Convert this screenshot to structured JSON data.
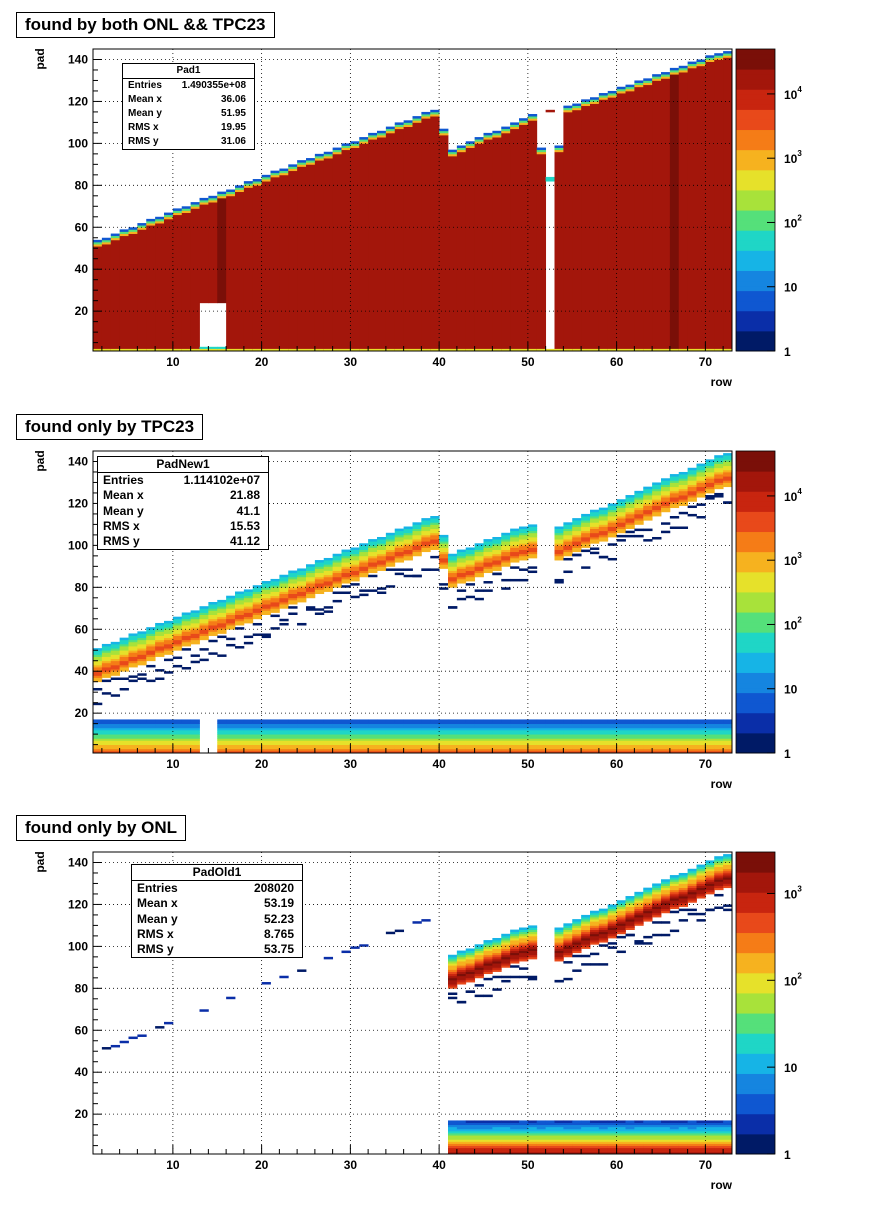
{
  "colors": {
    "frame": "#000000",
    "grid": "#000000",
    "palette": [
      "#001a66",
      "#0a2ea8",
      "#0f57d1",
      "#1585e0",
      "#16b4e6",
      "#1fd6c6",
      "#55e07a",
      "#a8e23a",
      "#e6e12a",
      "#f6b21f",
      "#f57c17",
      "#e8491a",
      "#c8250f",
      "#a3160b",
      "#7a0f08"
    ]
  },
  "panels": [
    {
      "title": "found by both ONL && TPC23",
      "stats": {
        "name": "Pad1",
        "rows": [
          {
            "label": "Entries",
            "value": "1.490355e+08"
          },
          {
            "label": "Mean x",
            "value": "36.06"
          },
          {
            "label": "Mean y",
            "value": "51.95"
          },
          {
            "label": "RMS x",
            "value": "19.95"
          },
          {
            "label": "RMS y",
            "value": "31.06"
          }
        ]
      }
    },
    {
      "title": "found only by TPC23",
      "stats": {
        "name": "PadNew1",
        "rows": [
          {
            "label": "Entries",
            "value": "1.114102e+07"
          },
          {
            "label": "Mean x",
            "value": "21.88"
          },
          {
            "label": "Mean y",
            "value": "41.1"
          },
          {
            "label": "RMS x",
            "value": "15.53"
          },
          {
            "label": "RMS y",
            "value": "41.12"
          }
        ]
      }
    },
    {
      "title": "found only by ONL",
      "stats": {
        "name": "PadOld1",
        "rows": [
          {
            "label": "Entries",
            "value": "208020"
          },
          {
            "label": "Mean x",
            "value": "53.19"
          },
          {
            "label": "Mean y",
            "value": "52.23"
          },
          {
            "label": "RMS x",
            "value": "8.765"
          },
          {
            "label": "RMS y",
            "value": "53.75"
          }
        ]
      }
    }
  ],
  "chart_data": [
    {
      "type": "heatmap",
      "xlabel": "row",
      "ylabel": "pad",
      "xlim": [
        1,
        73
      ],
      "ylim": [
        1,
        145
      ],
      "x_ticks": [
        10,
        20,
        30,
        40,
        50,
        60,
        70
      ],
      "y_ticks": [
        20,
        40,
        60,
        80,
        100,
        120,
        140
      ],
      "z_scale": "log",
      "z_range": [
        1,
        50000
      ],
      "z_tick_labels": [
        {
          "value": 1,
          "base": "1",
          "exp": ""
        },
        {
          "value": 10,
          "base": "10",
          "exp": ""
        },
        {
          "value": 100,
          "base": "10",
          "exp": "2"
        },
        {
          "value": 1000,
          "base": "10",
          "exp": "3"
        },
        {
          "value": 10000,
          "base": "10",
          "exp": "4"
        }
      ],
      "upper_edge": [
        {
          "row": 1,
          "pad": 53
        },
        {
          "row": 40,
          "pad": 117
        },
        {
          "row": 41,
          "pad": 96
        },
        {
          "row": 51,
          "pad": 115
        },
        {
          "row": 52,
          "pad": 80
        },
        {
          "row": 53,
          "pad": 80
        },
        {
          "row": 54,
          "pad": 117
        },
        {
          "row": 72,
          "pad": 144
        }
      ],
      "empty_regions": [
        {
          "x": [
            13,
            16
          ],
          "y": [
            1,
            24
          ]
        },
        {
          "x": [
            52,
            53
          ],
          "y": [
            82,
            115
          ]
        }
      ],
      "bulk_level": 20000
    },
    {
      "type": "heatmap",
      "xlabel": "row",
      "ylabel": "pad",
      "xlim": [
        1,
        73
      ],
      "ylim": [
        1,
        145
      ],
      "x_ticks": [
        10,
        20,
        30,
        40,
        50,
        60,
        70
      ],
      "y_ticks": [
        20,
        40,
        60,
        80,
        100,
        120,
        140
      ],
      "z_scale": "log",
      "z_range": [
        1,
        50000
      ],
      "z_tick_labels": [
        {
          "value": 1,
          "base": "1",
          "exp": ""
        },
        {
          "value": 10,
          "base": "10",
          "exp": ""
        },
        {
          "value": 100,
          "base": "10",
          "exp": "2"
        },
        {
          "value": 1000,
          "base": "10",
          "exp": "3"
        },
        {
          "value": 10000,
          "base": "10",
          "exp": "4"
        }
      ],
      "upper_band": [
        {
          "row": 1,
          "pad": 50
        },
        {
          "row": 40,
          "pad": 115
        },
        {
          "row": 41,
          "pad": 95
        },
        {
          "row": 50,
          "pad": 110
        },
        {
          "row": 53,
          "pad": 108
        },
        {
          "row": 72,
          "pad": 144
        }
      ],
      "lower_band": {
        "pad_range": [
          1,
          17
        ],
        "peak_level": 3000
      },
      "peak_level": 5000
    },
    {
      "type": "heatmap",
      "xlabel": "row",
      "ylabel": "pad",
      "xlim": [
        1,
        73
      ],
      "ylim": [
        1,
        145
      ],
      "x_ticks": [
        10,
        20,
        30,
        40,
        50,
        60,
        70
      ],
      "y_ticks": [
        20,
        40,
        60,
        80,
        100,
        120,
        140
      ],
      "z_scale": "log",
      "z_range": [
        1,
        3000
      ],
      "z_tick_labels": [
        {
          "value": 1,
          "base": "1",
          "exp": ""
        },
        {
          "value": 10,
          "base": "10",
          "exp": ""
        },
        {
          "value": 100,
          "base": "10",
          "exp": "2"
        },
        {
          "value": 1000,
          "base": "10",
          "exp": "3"
        }
      ],
      "upper_band": [
        {
          "row": 41,
          "pad": 95
        },
        {
          "row": 50,
          "pad": 110
        },
        {
          "row": 53,
          "pad": 108
        },
        {
          "row": 72,
          "pad": 144
        }
      ],
      "diagonal": [
        {
          "row": 1,
          "pad": 48
        },
        {
          "row": 40,
          "pad": 115
        }
      ],
      "lower_band": {
        "row_range": [
          41,
          73
        ],
        "pad_range": [
          1,
          17
        ],
        "peak_level": 1500
      },
      "peak_level": 2500
    }
  ]
}
